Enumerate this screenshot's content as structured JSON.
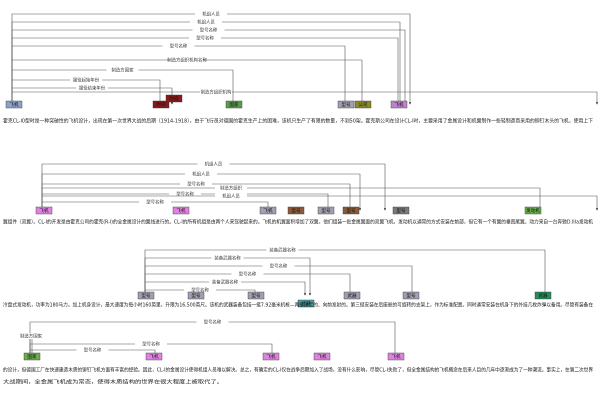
{
  "blocks": [
    {
      "lines": [
        "霍克CL-I0型时是一种突破性的飞机设计，出现在第一次世界大战的后期（1914-1918），由于飞行员对德国的霍克生产上的困难，该机只生产了有限的数量，不到50架。霍克斯公司在设计CL-I时，主要采用了金属设计和机翼制作一些轻制造商采用的铆钉木头的飞机，使用上下"
      ],
      "entities": [
        "飞机",
        "时间",
        "时间",
        "国家",
        "型号",
        "公司",
        "飞机"
      ],
      "relations": [
        "机组人员",
        "机组人员",
        "型号名称",
        "型号名称",
        "型号名称",
        "制造方组织机构名称",
        "制造方国家",
        "服役起始年份",
        "服役结束年份",
        "制造方组织机构"
      ]
    },
    {
      "lines": [
        "翼组件（双翼）。CL-I的开发是由霍克公司的霍克(R-I)的全金属设计的翼线进行的。CL-I的所有机组是由两个人来驾驶起来的。飞机的机翼面积增加了双翼，他们组装一批金属翼面的双翼飞机，发动机以通常的方式安装在前部，但它有一个有翼的垂直尾翼。动力来自一台奔驰D.IIIa发动机"
      ],
      "entities": [
        "飞机",
        "飞机",
        "飞机",
        "型号",
        "型号",
        "型号",
        "型号",
        "发动机"
      ],
      "relations": [
        "机组人员",
        "机组人员",
        "型号名称",
        "型号名称",
        "机组人员",
        "型号名称",
        "制造方组织"
      ]
    },
    {
      "lines": [
        "冷盘式发动机，功率为180马力。加上机身设计，最大速度为每小时160英里，升限为16,500英尺。该机的武器装备包括一挺7.92毫米机枪—两挺固定的、向前发射的。第三挺安装在后座舱的可旋转的支架上，作为标准配置。同时通常安装在机身下的外挂几枚炸弹以备用。尽管有装备在"
      ],
      "entities": [
        "型号",
        "型号",
        "型号",
        "武器",
        "武器",
        "型号",
        "武器"
      ],
      "relations": [
        "装备武器名称",
        "装备武器名称",
        "型号名称",
        "型号名称",
        "装备武器名称",
        "型号名称"
      ]
    },
    {
      "lines": [
        "的设计，但德国工厂在快速建造木质的铆钉飞机方面有丰富的经验。因此，CL-I的金属设计使得机组人员难以解决。总之，有确定的CL-I仅在战争后期加入了战场，没有什么影响，尽管CL-I失败了，但全金属结构的飞机概念在后来人目的几年中逐渐成为了一种潮流。事实上，在第二次世界",
        "大战期间，全金属飞机成为常态，使得木质结构的世界在很大程度上被取代了。"
      ],
      "entities": [
        "国家",
        "飞机",
        "飞机",
        "飞机",
        "飞机"
      ],
      "relations": [
        "型号名称",
        "制造方国家",
        "型号名称",
        "型号名称"
      ]
    }
  ]
}
